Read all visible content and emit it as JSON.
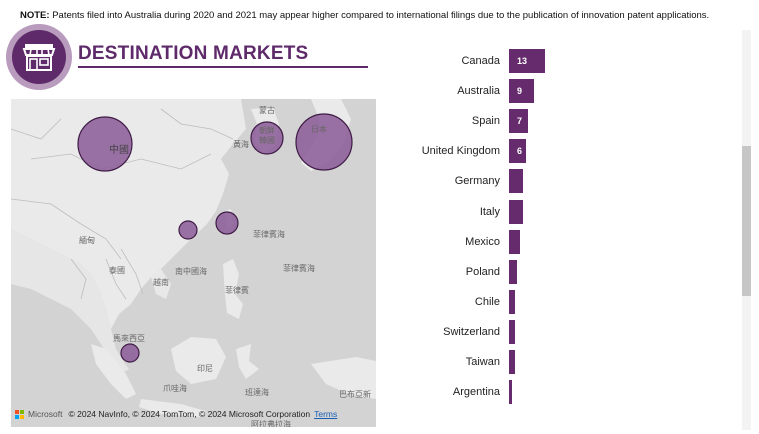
{
  "note": {
    "label": "NOTE:",
    "text": "Patents filed into Australia during 2020 and 2021 may appear higher compared to international filings due to the publication of innovation patent applications."
  },
  "header": {
    "title": "DESTINATION MARKETS",
    "logo_icon": "storefront-icon",
    "accent_color": "#5e2a6a"
  },
  "map": {
    "labels": [
      "蒙古",
      "朝鮮",
      "韓國",
      "黃海",
      "日本",
      "中國",
      "緬甸",
      "泰國",
      "南中國海",
      "越南",
      "菲律賓海",
      "菲律賓海",
      "菲律賓",
      "馬來西亞",
      "印尼",
      "爪哇海",
      "班達海",
      "巴布亞新",
      "阿拉弗拉海"
    ],
    "credit": {
      "brand": "Microsoft",
      "text": "© 2024 NavInfo, © 2024 TomTom, © 2024 Microsoft Corporation",
      "terms": "Terms"
    },
    "bubble_color": "#8b5a96"
  },
  "chart_data": {
    "type": "bar",
    "orientation": "horizontal",
    "categories": [
      "Canada",
      "Australia",
      "Spain",
      "United Kingdom",
      "Germany",
      "Italy",
      "Mexico",
      "Poland",
      "Chile",
      "Switzerland",
      "Taiwan",
      "Argentina"
    ],
    "values": [
      13,
      9,
      7,
      6,
      5,
      5,
      4,
      3,
      2,
      2,
      2,
      1
    ],
    "data_labels": [
      "13",
      "9",
      "7",
      "6",
      "",
      "",
      "",
      "",
      "",
      "",
      "",
      ""
    ],
    "bar_color": "#652b6c"
  }
}
